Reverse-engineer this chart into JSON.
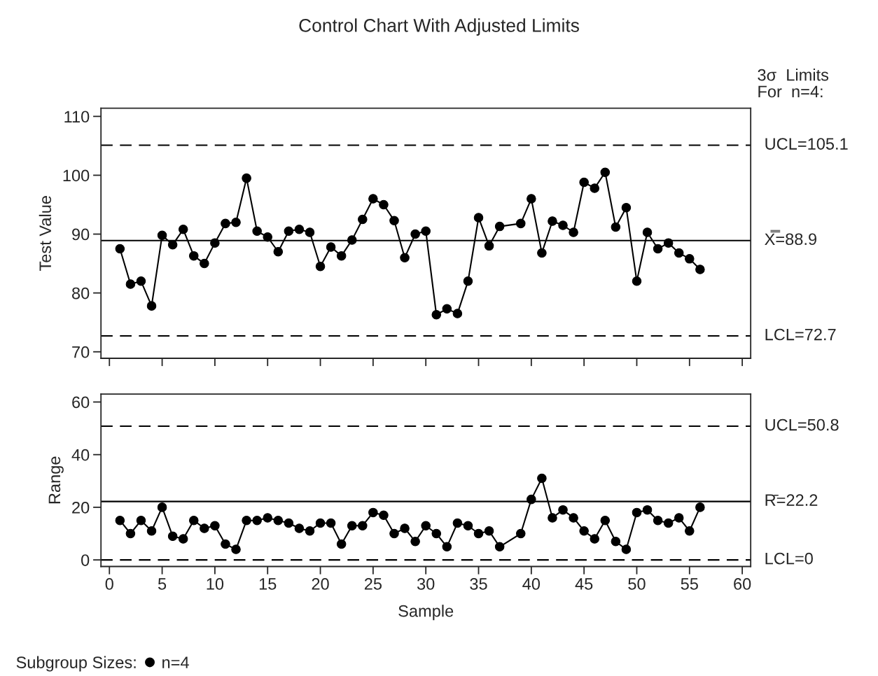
{
  "chart_data": [
    {
      "type": "line",
      "title": "Control Chart With Adjusted Limits",
      "ylabel": "Test Value",
      "x": [
        1,
        2,
        3,
        4,
        5,
        6,
        7,
        8,
        9,
        10,
        11,
        12,
        13,
        14,
        15,
        16,
        17,
        18,
        19,
        20,
        21,
        22,
        23,
        24,
        25,
        26,
        27,
        28,
        29,
        30,
        31,
        32,
        33,
        34,
        35,
        36,
        37,
        39,
        40,
        41,
        42,
        43,
        44,
        45,
        46,
        47,
        48,
        49,
        50,
        51,
        52,
        53,
        54,
        55,
        56
      ],
      "series": [
        {
          "name": "n=4",
          "color": "#000000",
          "values": [
            87.5,
            81.5,
            82,
            77.8,
            89.8,
            88.2,
            90.8,
            86.3,
            85,
            88.5,
            91.8,
            92,
            99.5,
            90.5,
            89.5,
            87,
            90.5,
            90.8,
            90.3,
            84.5,
            87.8,
            86.3,
            89,
            92.5,
            96,
            95,
            92.3,
            86,
            90,
            90.5,
            76.3,
            77.3,
            76.5,
            82,
            92.8,
            88,
            91.3,
            91.8,
            96,
            86.8,
            92.2,
            91.5,
            90.3,
            98.8,
            97.8,
            100.5,
            91.2,
            94.5,
            82,
            90.3,
            87.5,
            88.5,
            86.8,
            85.8,
            84
          ]
        }
      ],
      "xlim": [
        -0.8,
        60.8
      ],
      "ylim": [
        68.9,
        111.4
      ],
      "xticks": [
        0,
        5,
        10,
        15,
        20,
        25,
        30,
        35,
        40,
        45,
        50,
        55,
        60
      ],
      "yticks": [
        70,
        80,
        90,
        100,
        110
      ],
      "tick_labels": "y",
      "marker": "circle",
      "line_style": "solid",
      "grid": false,
      "legend": "bottom left",
      "legend_title": "Subgroup Sizes:",
      "annotations": [
        "3σ  Limits\nFor  n=4:"
      ],
      "ref_lines": [
        {
          "axis": "y",
          "value": 105.1,
          "label": "UCL=105.1",
          "line_style": "dashed",
          "color": "#000000"
        },
        {
          "axis": "y",
          "value": 88.9,
          "label": "X̿=88.9",
          "line_style": "solid",
          "color": "#000000"
        },
        {
          "axis": "y",
          "value": 72.7,
          "label": "LCL=72.7",
          "line_style": "dashed",
          "color": "#000000"
        }
      ]
    },
    {
      "type": "line",
      "xlabel": "Sample",
      "ylabel": "Range",
      "x": [
        1,
        2,
        3,
        4,
        5,
        6,
        7,
        8,
        9,
        10,
        11,
        12,
        13,
        14,
        15,
        16,
        17,
        18,
        19,
        20,
        21,
        22,
        23,
        24,
        25,
        26,
        27,
        28,
        29,
        30,
        31,
        32,
        33,
        34,
        35,
        36,
        37,
        39,
        40,
        41,
        42,
        43,
        44,
        45,
        46,
        47,
        48,
        49,
        50,
        51,
        52,
        53,
        54,
        55,
        56
      ],
      "series": [
        {
          "color": "#000000",
          "values": [
            15,
            10,
            15,
            11,
            20,
            9,
            8,
            15,
            12,
            13,
            6,
            4,
            15,
            15,
            16,
            15,
            14,
            12,
            11,
            14,
            14,
            6,
            13,
            13,
            18,
            17,
            10,
            12,
            7,
            13,
            10,
            5,
            14,
            13,
            10,
            11,
            5,
            10,
            23,
            31,
            16,
            19,
            16,
            11,
            8,
            15,
            7,
            4,
            18,
            19,
            15,
            14,
            16,
            11,
            20
          ]
        }
      ],
      "xlim": [
        -0.8,
        60.8
      ],
      "ylim": [
        -2.5,
        63
      ],
      "xticks": [
        0,
        5,
        10,
        15,
        20,
        25,
        30,
        35,
        40,
        45,
        50,
        55,
        60
      ],
      "yticks": [
        0,
        20,
        40,
        60
      ],
      "marker": "circle",
      "line_style": "solid",
      "grid": false,
      "ref_lines": [
        {
          "axis": "y",
          "value": 50.8,
          "label": "UCL=50.8",
          "line_style": "dashed",
          "color": "#000000"
        },
        {
          "axis": "y",
          "value": 22.2,
          "label": "R̄=22.2",
          "line_style": "solid",
          "color": "#000000"
        },
        {
          "axis": "y",
          "value": 0,
          "label": "LCL=0",
          "line_style": "dashed",
          "color": "#000000"
        }
      ]
    }
  ]
}
